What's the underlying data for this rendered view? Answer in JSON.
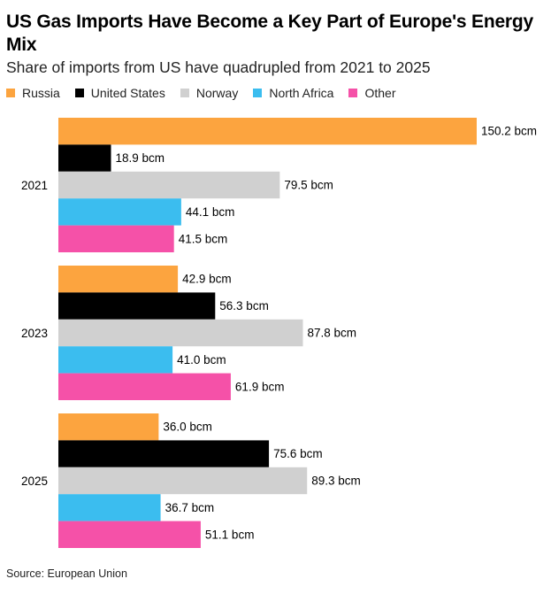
{
  "title": "US Gas Imports Have Become a Key Part of Europe's Energy Mix",
  "subtitle": "Share of imports from US have quadrupled from 2021 to 2025",
  "source": "Source: European Union",
  "legend": [
    {
      "name": "Russia",
      "color": "#FCA43F"
    },
    {
      "name": "United States",
      "color": "#000000"
    },
    {
      "name": "Norway",
      "color": "#D0D0D0"
    },
    {
      "name": "North Africa",
      "color": "#3BBDEF"
    },
    {
      "name": "Other",
      "color": "#F551A8"
    }
  ],
  "chart_data": {
    "type": "bar",
    "orientation": "horizontal",
    "categories": [
      "2021",
      "2023",
      "2025"
    ],
    "unit": "bcm",
    "xlim": [
      0,
      150.2
    ],
    "grid": false,
    "legend_position": "top",
    "series": [
      {
        "name": "Russia",
        "color": "#FCA43F",
        "values": [
          150.2,
          42.9,
          36.0
        ],
        "labels": [
          "150.2 bcm",
          "42.9 bcm",
          "36.0 bcm"
        ]
      },
      {
        "name": "United States",
        "color": "#000000",
        "values": [
          18.9,
          56.3,
          75.6
        ],
        "labels": [
          "18.9 bcm",
          "56.3 bcm",
          "75.6 bcm"
        ]
      },
      {
        "name": "Norway",
        "color": "#D0D0D0",
        "values": [
          79.5,
          87.8,
          89.3
        ],
        "labels": [
          "79.5 bcm",
          "87.8 bcm",
          "89.3 bcm"
        ]
      },
      {
        "name": "North Africa",
        "color": "#3BBDEF",
        "values": [
          44.1,
          41.0,
          36.7
        ],
        "labels": [
          "44.1 bcm",
          "41.0 bcm",
          "36.7 bcm"
        ]
      },
      {
        "name": "Other",
        "color": "#F551A8",
        "values": [
          41.5,
          61.9,
          51.1
        ],
        "labels": [
          "41.5 bcm",
          "61.9 bcm",
          "51.1 bcm"
        ]
      }
    ]
  }
}
